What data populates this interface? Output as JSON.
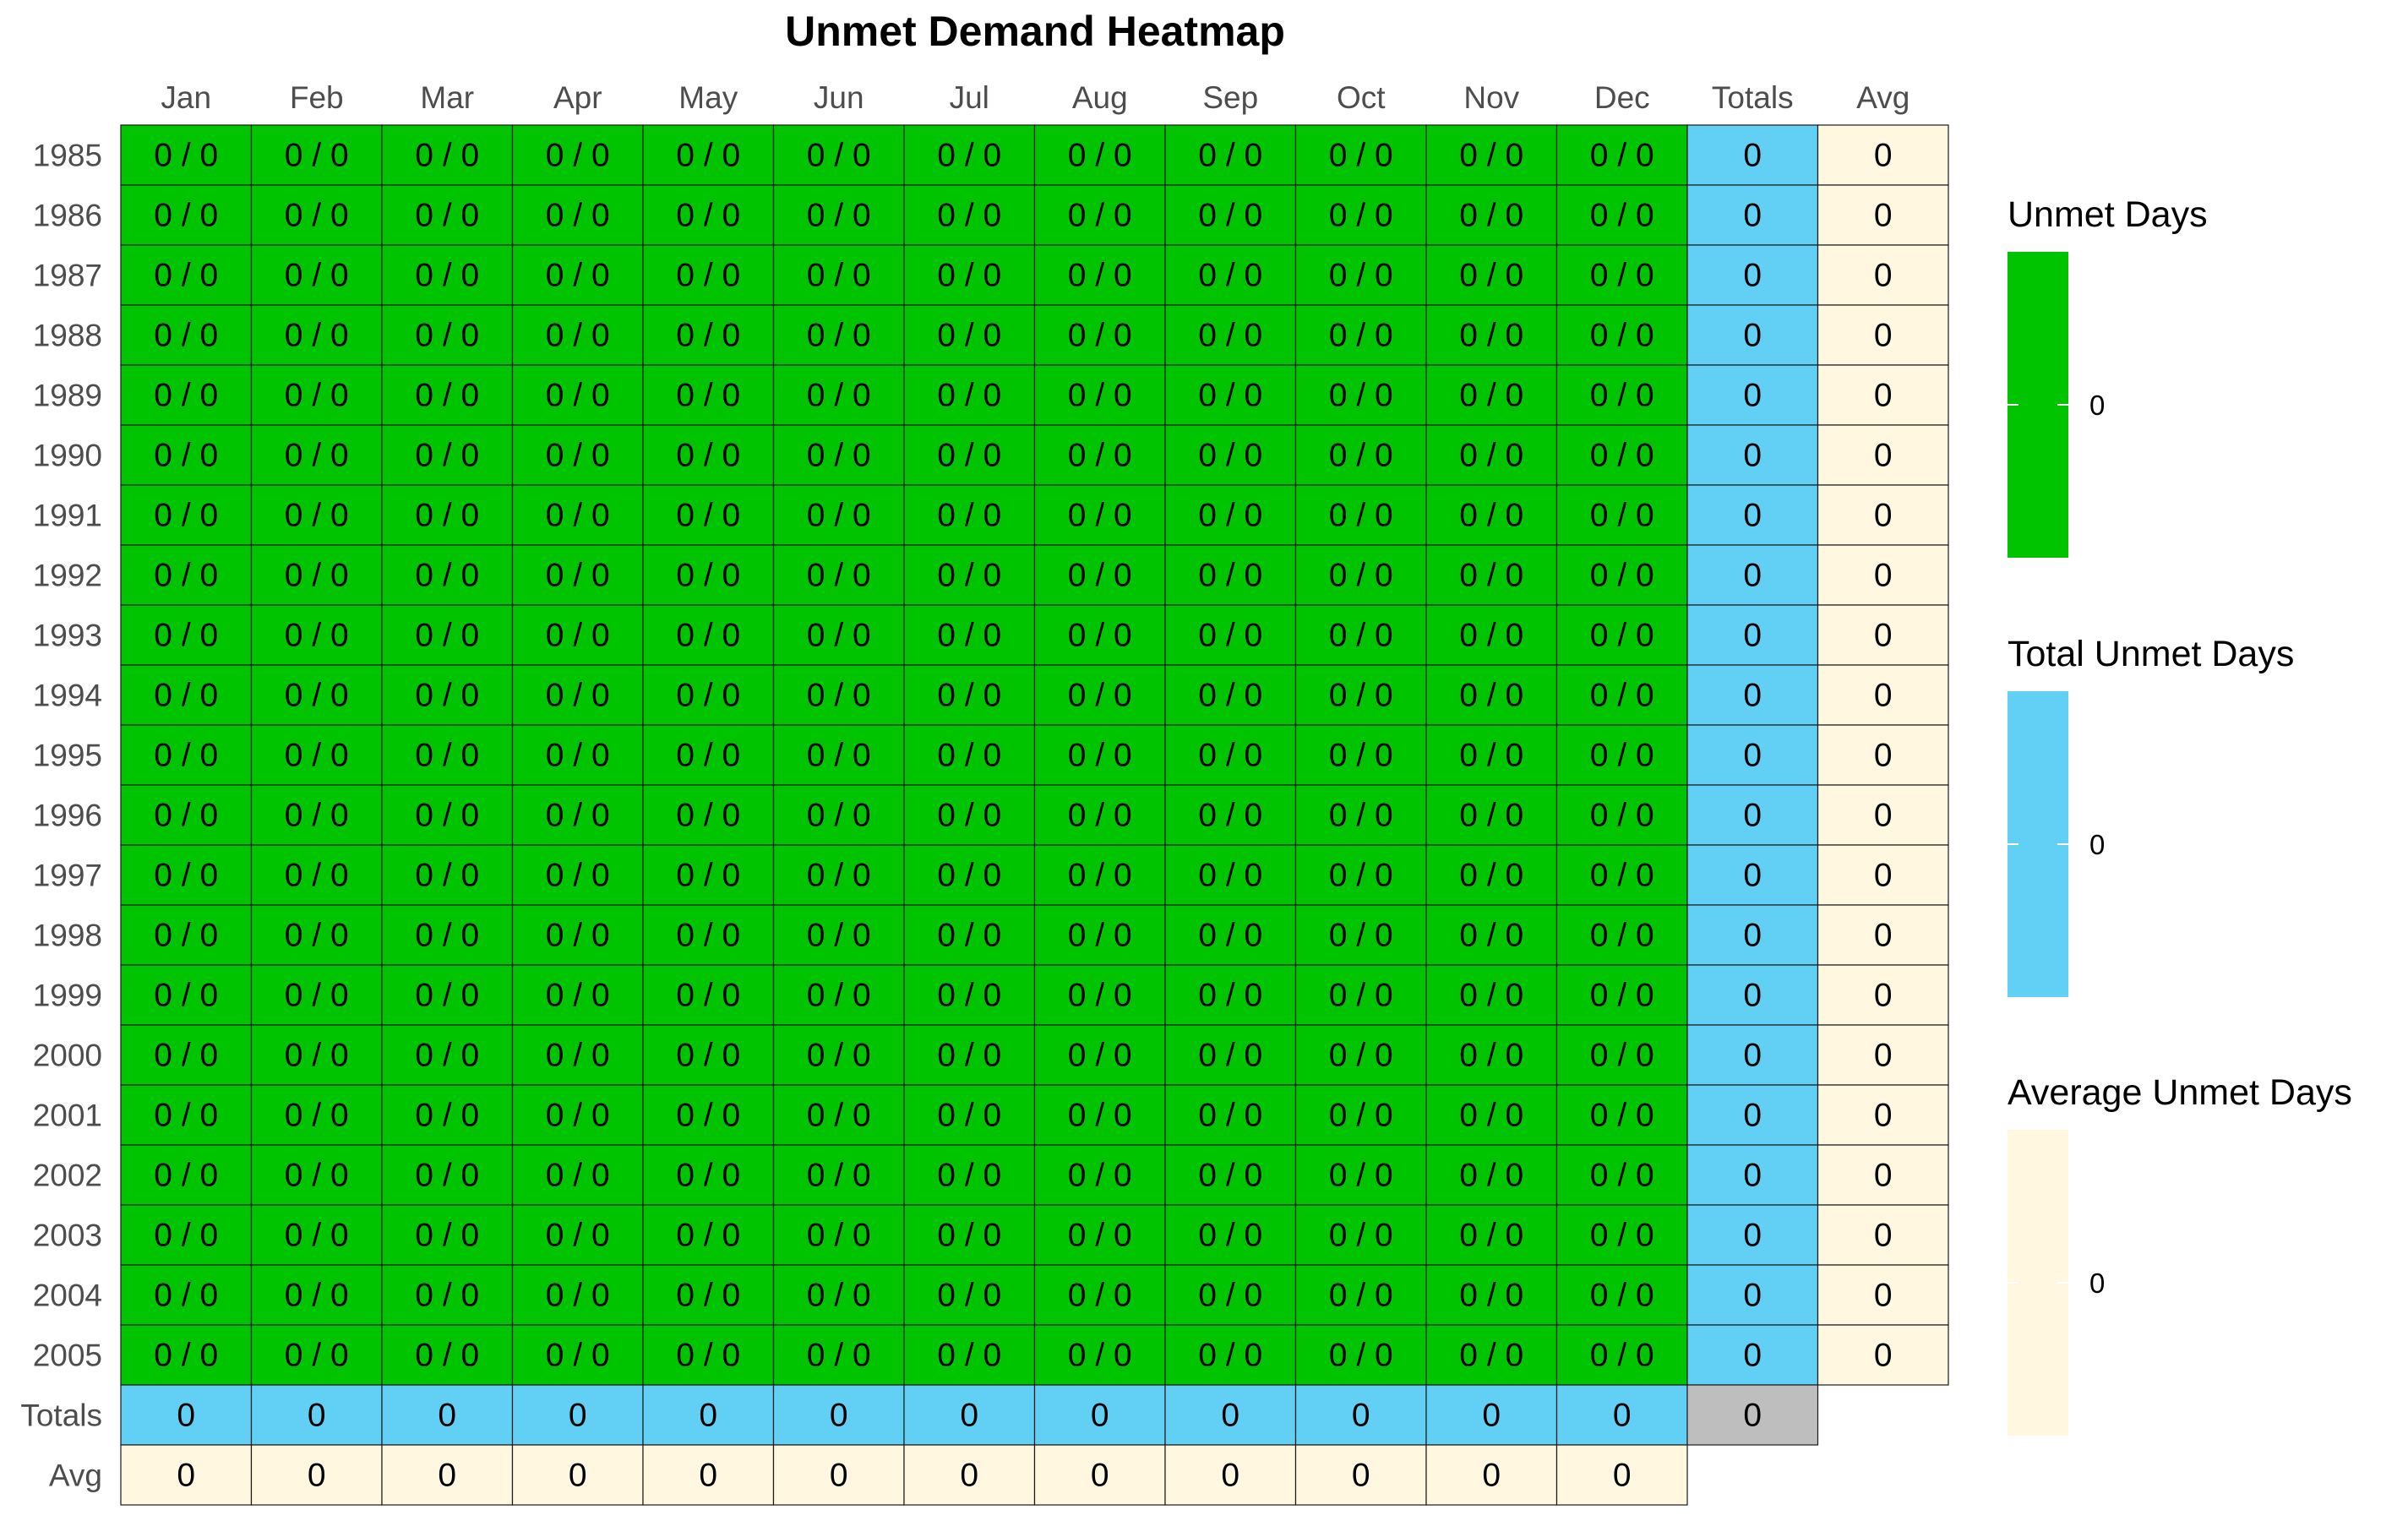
{
  "chart_data": {
    "type": "heatmap",
    "title": "Unmet Demand Heatmap",
    "columns": [
      "Jan",
      "Feb",
      "Mar",
      "Apr",
      "May",
      "Jun",
      "Jul",
      "Aug",
      "Sep",
      "Oct",
      "Nov",
      "Dec",
      "Totals",
      "Avg"
    ],
    "rows": [
      "1985",
      "1986",
      "1987",
      "1988",
      "1989",
      "1990",
      "1991",
      "1992",
      "1993",
      "1994",
      "1995",
      "1996",
      "1997",
      "1998",
      "1999",
      "2000",
      "2001",
      "2002",
      "2003",
      "2004",
      "2005",
      "Totals",
      "Avg"
    ],
    "monthly_cell_value": "0 / 0",
    "row_totals": [
      0,
      0,
      0,
      0,
      0,
      0,
      0,
      0,
      0,
      0,
      0,
      0,
      0,
      0,
      0,
      0,
      0,
      0,
      0,
      0,
      0
    ],
    "row_avgs": [
      0,
      0,
      0,
      0,
      0,
      0,
      0,
      0,
      0,
      0,
      0,
      0,
      0,
      0,
      0,
      0,
      0,
      0,
      0,
      0,
      0
    ],
    "col_totals": [
      0,
      0,
      0,
      0,
      0,
      0,
      0,
      0,
      0,
      0,
      0,
      0
    ],
    "col_avgs": [
      0,
      0,
      0,
      0,
      0,
      0,
      0,
      0,
      0,
      0,
      0,
      0
    ],
    "grand_total": 0,
    "legends": [
      {
        "title": "Unmet Days",
        "tick": "0",
        "color": "#00c400"
      },
      {
        "title": "Total Unmet Days",
        "tick": "0",
        "color": "#62cff4"
      },
      {
        "title": "Average Unmet Days",
        "tick": "0",
        "color": "#fff7e0"
      }
    ],
    "colors": {
      "monthly": "#00c400",
      "totals": "#62cff4",
      "avg": "#fff7e0",
      "grand_total": "#bebebe"
    },
    "legend_position": "right"
  }
}
